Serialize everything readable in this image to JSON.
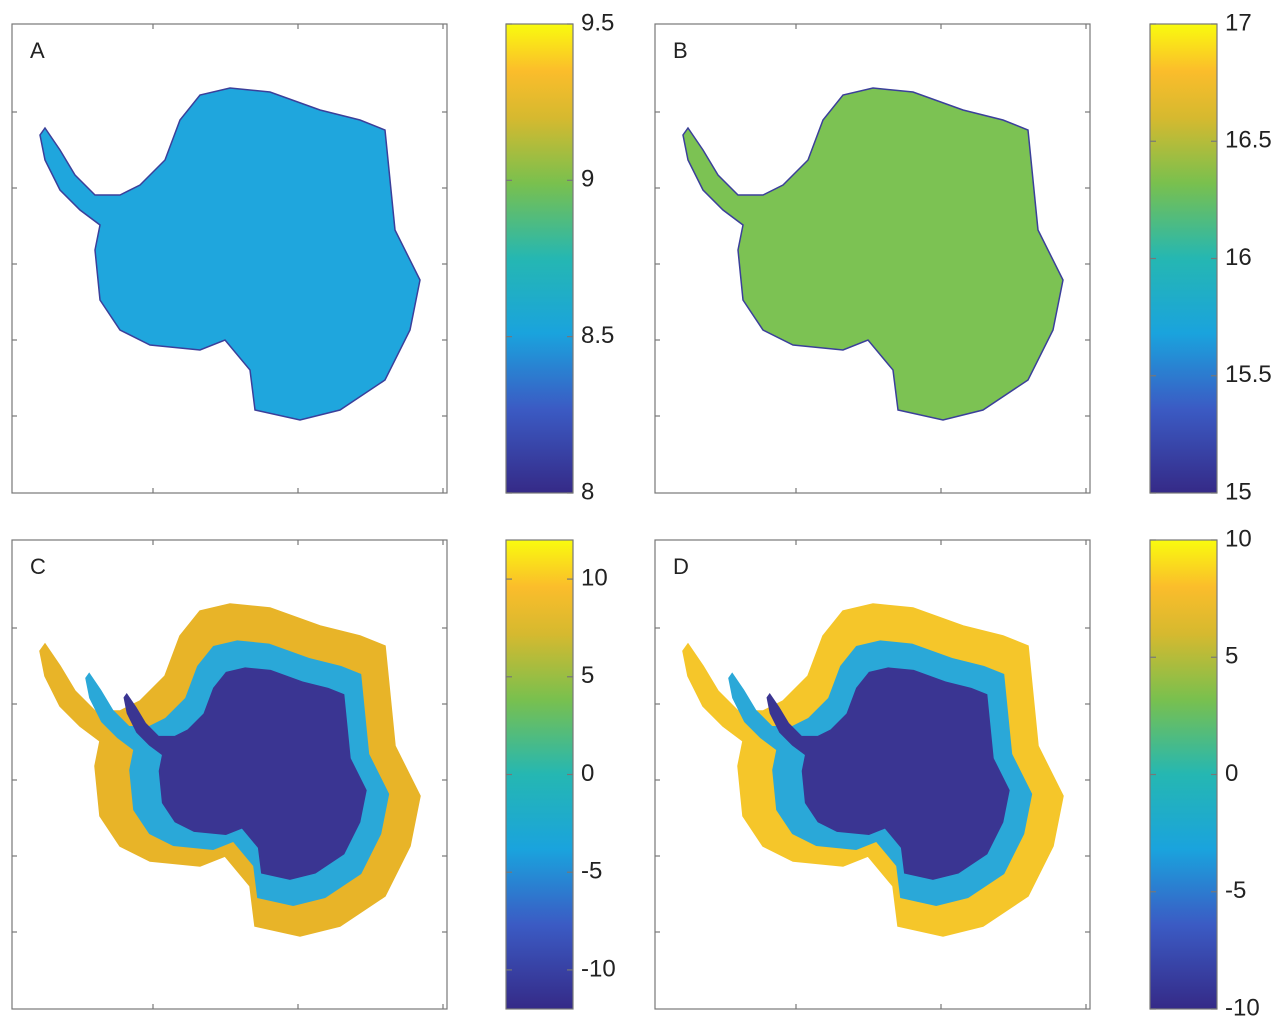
{
  "chart_data": [
    {
      "type": "heatmap",
      "label": "A",
      "clim": [
        8,
        9.5
      ],
      "cticks": [
        8,
        8.5,
        9,
        9.5
      ],
      "fill": "#1fa6dd"
    },
    {
      "type": "heatmap",
      "label": "B",
      "clim": [
        15,
        17
      ],
      "cticks": [
        15,
        15.5,
        16,
        16.5,
        17
      ],
      "fill": "#7cc253"
    },
    {
      "type": "heatmap",
      "label": "C",
      "clim": [
        -12,
        12
      ],
      "cticks": [
        -10,
        -5,
        0,
        5,
        10
      ],
      "fill": "#e8b428"
    },
    {
      "type": "heatmap",
      "label": "D",
      "clim": [
        -10,
        10
      ],
      "cticks": [
        -10,
        -5,
        0,
        5,
        10
      ],
      "fill": "#f5c62a"
    }
  ]
}
